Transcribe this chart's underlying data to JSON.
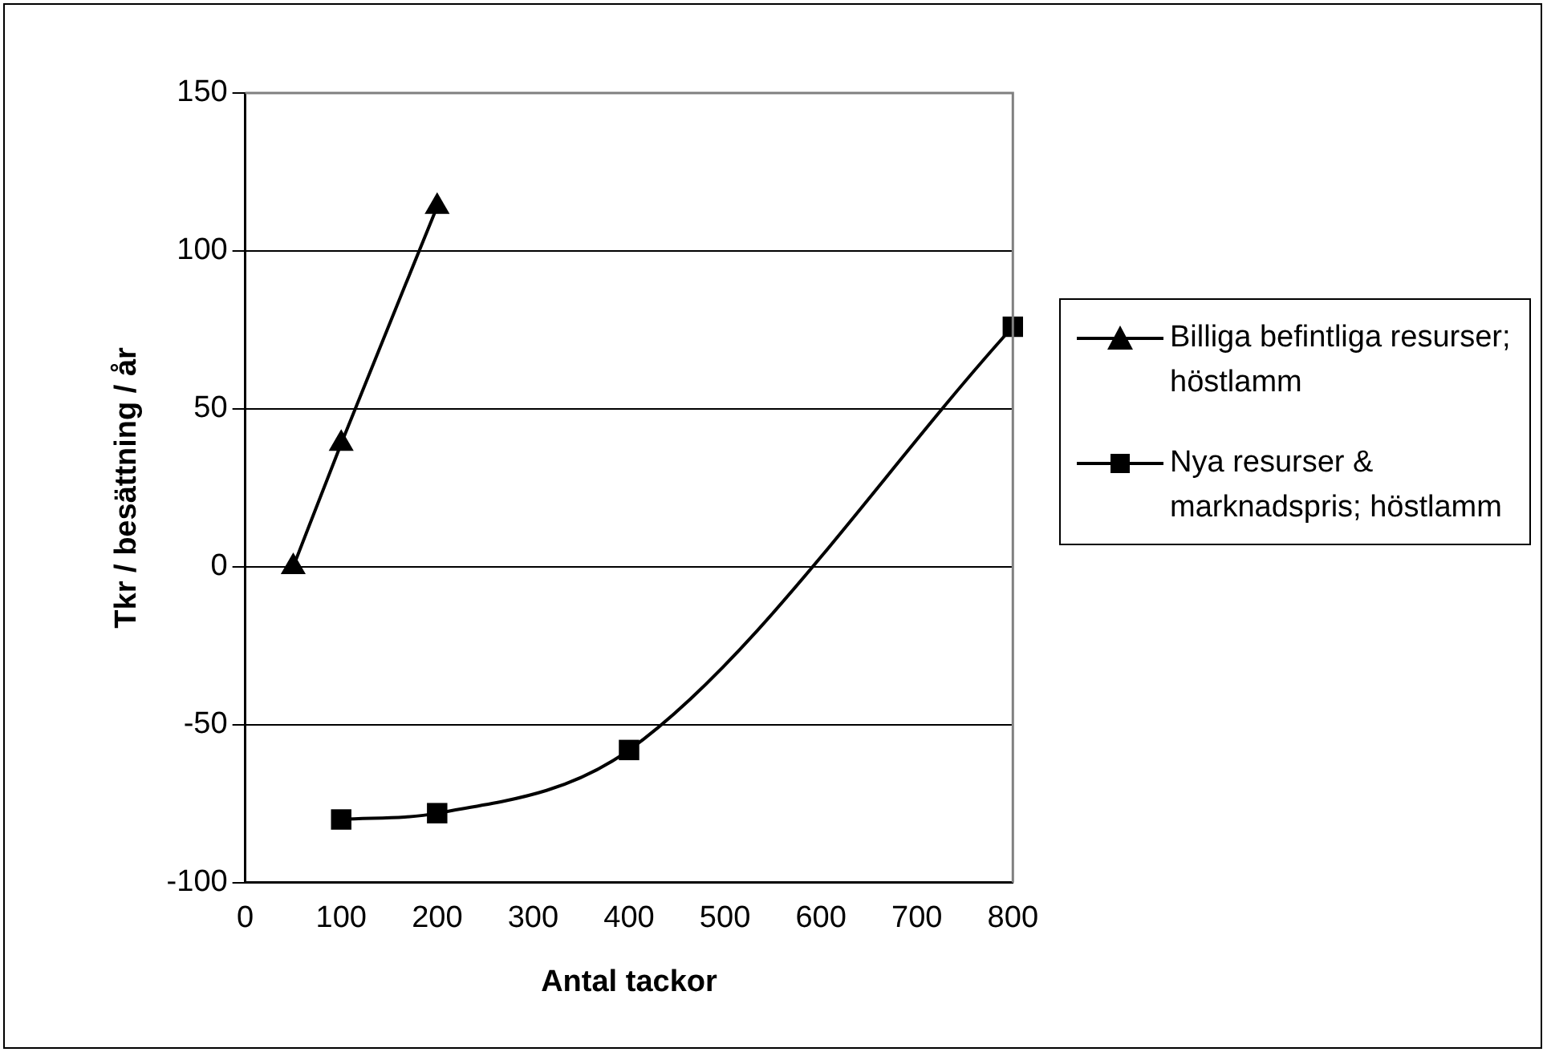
{
  "chart_data": {
    "type": "line",
    "xlabel": "Antal tackor",
    "ylabel": "Tkr / besättning / år",
    "xlim": [
      0,
      800
    ],
    "xticks": [
      0,
      100,
      200,
      300,
      400,
      500,
      600,
      700,
      800
    ],
    "ylim": [
      -100,
      150
    ],
    "yticks": [
      -100,
      -50,
      0,
      50,
      100,
      150
    ],
    "grid": "y",
    "legend": "right",
    "series": [
      {
        "name": "Billiga befintliga resurser; höstlamm",
        "color": "#000000",
        "marker": "triangle",
        "x": [
          50,
          100,
          200
        ],
        "values": [
          0,
          39,
          114
        ]
      },
      {
        "name": "Nya resurser & marknadspris; höstlamm",
        "color": "#000000",
        "marker": "square",
        "x": [
          100,
          200,
          400,
          800
        ],
        "values": [
          -80,
          -78,
          -58,
          76
        ]
      }
    ]
  }
}
